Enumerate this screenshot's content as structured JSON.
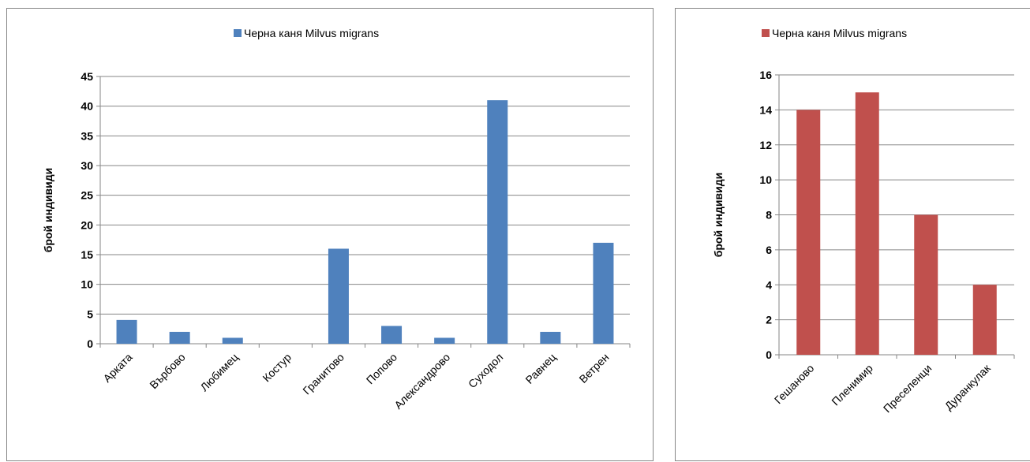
{
  "chart_data": [
    {
      "type": "bar",
      "title": "",
      "xlabel": "",
      "ylabel": "брой индивиди",
      "ylim": [
        0,
        45
      ],
      "ytick_step": 5,
      "grid": true,
      "legend_position": "top",
      "color": "#4F81BD",
      "categories": [
        "Арката",
        "Върбово",
        "Любимец",
        "Костур",
        "Гранитово",
        "Попово",
        "Александрово",
        "Суходол",
        "Равнец",
        "Ветрен"
      ],
      "series": [
        {
          "name": "Черна каня Milvus migrans",
          "values": [
            4,
            2,
            1,
            0,
            16,
            3,
            1,
            41,
            2,
            17
          ]
        }
      ]
    },
    {
      "type": "bar",
      "title": "",
      "xlabel": "",
      "ylabel": "брой индивиди",
      "ylim": [
        0,
        16
      ],
      "ytick_step": 2,
      "grid": true,
      "legend_position": "top",
      "color": "#C0504D",
      "categories": [
        "Гешаново",
        "Пленимир",
        "Преселенци",
        "Дуранкулак"
      ],
      "series": [
        {
          "name": "Черна каня Milvus migrans",
          "values": [
            14,
            15,
            8,
            4
          ]
        }
      ]
    }
  ]
}
